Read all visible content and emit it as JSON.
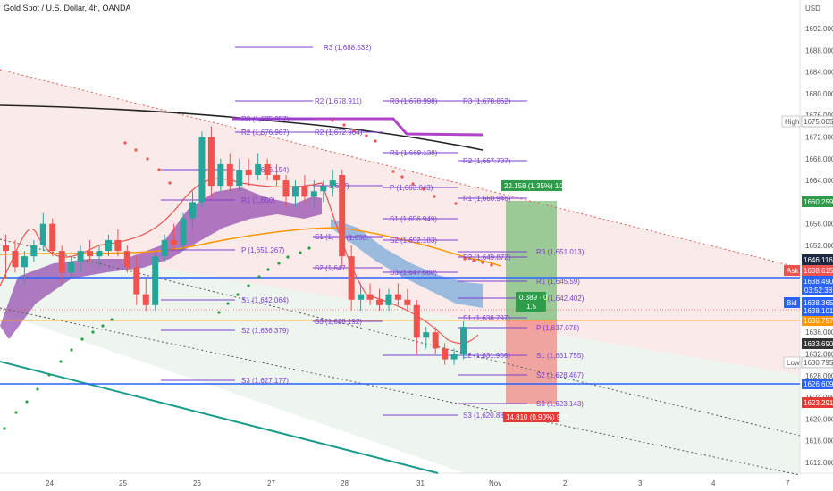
{
  "header": {
    "symbol_title": "Gold Spot / U.S. Dollar, 4h, OANDA"
  },
  "price_axis": {
    "currency": "USD",
    "ticks": [
      "1692.000",
      "1688.000",
      "1684.000",
      "1680.000",
      "1676.000",
      "1672.000",
      "1668.000",
      "1664.000",
      "1660.000",
      "1656.000",
      "1652.000",
      "1648.000",
      "1644.000",
      "1640.000",
      "1636.000",
      "1632.000",
      "1628.000",
      "1624.000",
      "1620.000",
      "1616.000",
      "1612.000"
    ]
  },
  "time_axis": {
    "ticks": [
      "24",
      "25",
      "26",
      "27",
      "28",
      "31",
      "Nov",
      "2",
      "3",
      "4",
      "7"
    ]
  },
  "price_tags": {
    "high_label": "High",
    "high_value": "1675.005",
    "tp_value": "1660.259",
    "blue_upper": "1646.116",
    "ask_label": "Ask",
    "ask_value": "1638.615",
    "blue_value": "1638.490",
    "countdown": "03:52:38",
    "bid_label": "Bid",
    "bid_value": "1638.365",
    "last_value": "1638.101",
    "orange_value": "1636.757",
    "dark_value": "1633.690",
    "low_label": "Low",
    "low_value": "1630.795",
    "blue_lower": "1626.609",
    "sl_value": "1623.291"
  },
  "position_tool": {
    "target_label": "22.158 (1.35%) 1014.96",
    "stop_label": "14.810 (0.90%) 990",
    "ratio_line1": "0.389 · 0",
    "ratio_line2": "1.5"
  },
  "pivot_labels": [
    "R3 (1,688.532)",
    "R2 (1,678.911)",
    "R3 (1,678.998)",
    "R3 (1,678.862)",
    "R3 (1,675.357)",
    "R2 (1,672.904)",
    "R2 (1,676.967)",
    "R1 (1,669.138)",
    "R2 (1,667.787)",
    "1,656.154)",
    "1,667)",
    "P (1,663.043)",
    "R1 (1,660.946)",
    "R1 (1,650)",
    "S1 (1,656.949)",
    "P (1,651.267)",
    "S1 (1,",
    "S2 (1,652.183)",
    "R2 (1,649.872)",
    "R3 (1,651.013)",
    "P (1,653.",
    "S2 (1,647.",
    "S3 (1,647.688)",
    "R1 (1,645.59)",
    "S1 (1,642.064)",
    "R1 (1,642.402)",
    "S3 (1,638.192)",
    "S1 (1,638.797)",
    "S2 (1,636.379)",
    "P (1,637.078)",
    "S2 (1,631.956)",
    "S1 (1,631.755)",
    "S2 (1,628.467)",
    "S3 (1,627.177)",
    "S3 (1,623.143)",
    "S3 (1,620.882)"
  ],
  "colors": {
    "up_candle": "#26a69a",
    "down_candle": "#ef5350",
    "pivot": "#7b3fd0",
    "blue_line": "#2962ff",
    "orange_line": "#ff9800",
    "ribbon": "#8e44ad",
    "cloud_blue": "#5b9bd5",
    "black_ma": "#222222",
    "teal_line": "#1a9c8c"
  },
  "candles": [
    {
      "o": 1652,
      "h": 1654,
      "l": 1646,
      "c": 1651
    },
    {
      "o": 1651,
      "h": 1653,
      "l": 1647,
      "c": 1648
    },
    {
      "o": 1648,
      "h": 1651,
      "l": 1645,
      "c": 1650
    },
    {
      "o": 1650,
      "h": 1653,
      "l": 1649,
      "c": 1652
    },
    {
      "o": 1652,
      "h": 1658,
      "l": 1651,
      "c": 1656
    },
    {
      "o": 1656,
      "h": 1657,
      "l": 1650,
      "c": 1651
    },
    {
      "o": 1651,
      "h": 1652,
      "l": 1645,
      "c": 1647
    },
    {
      "o": 1647,
      "h": 1650,
      "l": 1646,
      "c": 1649
    },
    {
      "o": 1649,
      "h": 1652,
      "l": 1647,
      "c": 1651
    },
    {
      "o": 1651,
      "h": 1653,
      "l": 1649,
      "c": 1650
    },
    {
      "o": 1650,
      "h": 1652,
      "l": 1648,
      "c": 1651
    },
    {
      "o": 1651,
      "h": 1654,
      "l": 1650,
      "c": 1653
    },
    {
      "o": 1653,
      "h": 1655,
      "l": 1650,
      "c": 1651
    },
    {
      "o": 1651,
      "h": 1652,
      "l": 1647,
      "c": 1648
    },
    {
      "o": 1648,
      "h": 1650,
      "l": 1641,
      "c": 1643
    },
    {
      "o": 1643,
      "h": 1646,
      "l": 1640,
      "c": 1641
    },
    {
      "o": 1641,
      "h": 1651,
      "l": 1640,
      "c": 1650
    },
    {
      "o": 1650,
      "h": 1654,
      "l": 1649,
      "c": 1653
    },
    {
      "o": 1653,
      "h": 1656,
      "l": 1651,
      "c": 1652
    },
    {
      "o": 1652,
      "h": 1658,
      "l": 1651,
      "c": 1657
    },
    {
      "o": 1657,
      "h": 1662,
      "l": 1655,
      "c": 1660
    },
    {
      "o": 1660,
      "h": 1673,
      "l": 1659,
      "c": 1672
    },
    {
      "o": 1672,
      "h": 1674,
      "l": 1661,
      "c": 1663
    },
    {
      "o": 1663,
      "h": 1668,
      "l": 1662,
      "c": 1667
    },
    {
      "o": 1667,
      "h": 1669,
      "l": 1662,
      "c": 1663
    },
    {
      "o": 1663,
      "h": 1668,
      "l": 1662,
      "c": 1666
    },
    {
      "o": 1666,
      "h": 1668,
      "l": 1663,
      "c": 1665
    },
    {
      "o": 1665,
      "h": 1669,
      "l": 1664,
      "c": 1667
    },
    {
      "o": 1667,
      "h": 1668,
      "l": 1664,
      "c": 1665
    },
    {
      "o": 1665,
      "h": 1667,
      "l": 1663,
      "c": 1664
    },
    {
      "o": 1664,
      "h": 1665,
      "l": 1659,
      "c": 1661
    },
    {
      "o": 1661,
      "h": 1664,
      "l": 1659,
      "c": 1663
    },
    {
      "o": 1663,
      "h": 1665,
      "l": 1660,
      "c": 1661
    },
    {
      "o": 1661,
      "h": 1664,
      "l": 1659,
      "c": 1662
    },
    {
      "o": 1662,
      "h": 1664,
      "l": 1660,
      "c": 1663
    },
    {
      "o": 1663,
      "h": 1666,
      "l": 1661,
      "c": 1664
    },
    {
      "o": 1665,
      "h": 1666,
      "l": 1648,
      "c": 1650
    },
    {
      "o": 1650,
      "h": 1652,
      "l": 1640,
      "c": 1642
    },
    {
      "o": 1642,
      "h": 1645,
      "l": 1640,
      "c": 1643
    },
    {
      "o": 1643,
      "h": 1645,
      "l": 1641,
      "c": 1642
    },
    {
      "o": 1642,
      "h": 1644,
      "l": 1640,
      "c": 1641
    },
    {
      "o": 1641,
      "h": 1644,
      "l": 1640,
      "c": 1643
    },
    {
      "o": 1643,
      "h": 1645,
      "l": 1641,
      "c": 1642
    },
    {
      "o": 1642,
      "h": 1644,
      "l": 1640,
      "c": 1641
    },
    {
      "o": 1641,
      "h": 1642,
      "l": 1632,
      "c": 1635
    },
    {
      "o": 1635,
      "h": 1637,
      "l": 1633,
      "c": 1636
    },
    {
      "o": 1636,
      "h": 1637,
      "l": 1632,
      "c": 1633
    },
    {
      "o": 1633,
      "h": 1634,
      "l": 1630,
      "c": 1631
    },
    {
      "o": 1631,
      "h": 1633,
      "l": 1630,
      "c": 1632
    },
    {
      "o": 1632,
      "h": 1638,
      "l": 1631,
      "c": 1637
    }
  ]
}
